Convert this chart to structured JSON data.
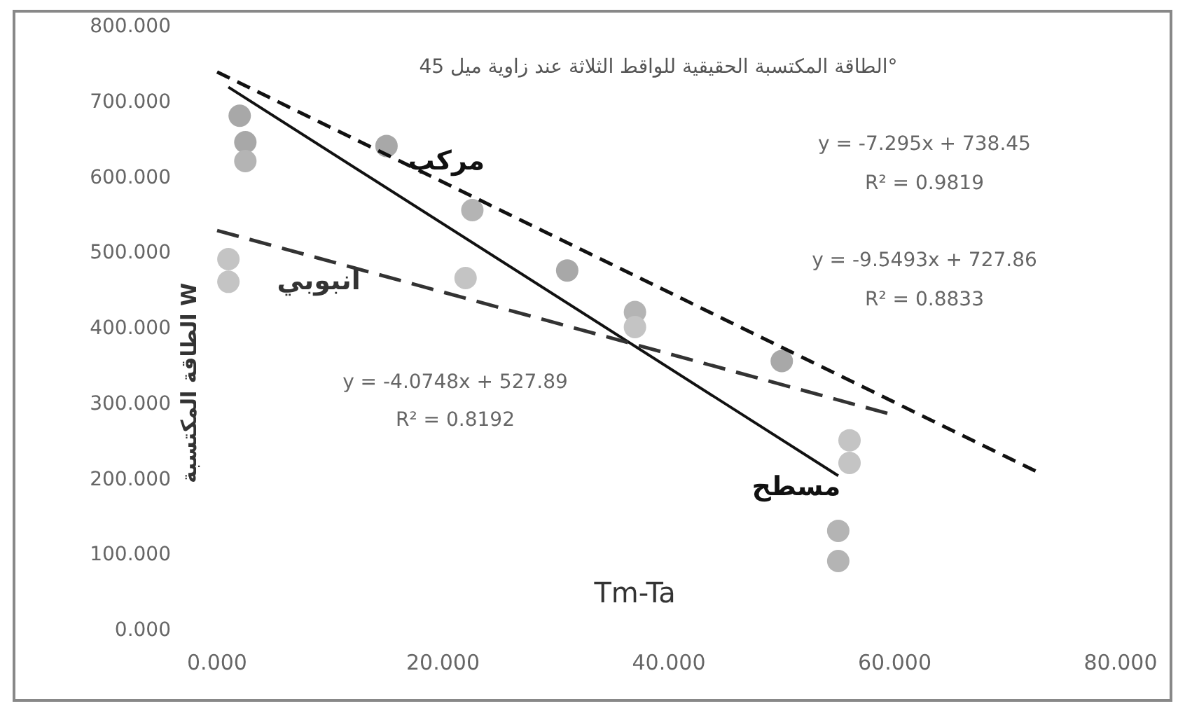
{
  "chart_data": {
    "type": "scatter",
    "title": "الطاقة المكتسبة الحقيقية للواقط الثلاثة عند زاوية ميل 45°",
    "xlabel": "Tm-Ta",
    "ylabel": "الطاقة المكتسبة W",
    "xlim": [
      0,
      80
    ],
    "ylim": [
      0,
      800
    ],
    "xticks": [
      {
        "value": 0,
        "label": "0.000"
      },
      {
        "value": 20,
        "label": "20.000"
      },
      {
        "value": 40,
        "label": "40.000"
      },
      {
        "value": 60,
        "label": "60.000"
      },
      {
        "value": 80,
        "label": "80.000"
      }
    ],
    "yticks": [
      {
        "value": 0,
        "label": "0.000"
      },
      {
        "value": 100,
        "label": "100.000"
      },
      {
        "value": 200,
        "label": "200.000"
      },
      {
        "value": 300,
        "label": "300.000"
      },
      {
        "value": 400,
        "label": "400.000"
      },
      {
        "value": 500,
        "label": "500.000"
      },
      {
        "value": 600,
        "label": "600.000"
      },
      {
        "value": 700,
        "label": "700.000"
      },
      {
        "value": 800,
        "label": "800.000"
      }
    ],
    "marker": "circle",
    "annotations": [
      "y = -7.295x + 738.45",
      "R² = 0.9819",
      "y = -9.5493x + 727.86",
      "R² = 0.8833",
      "y = -4.0748x + 527.89",
      "R² = 0.8192"
    ],
    "series": [
      {
        "color": "#a8a8a8",
        "x": [
          2,
          2.5,
          15,
          31,
          50
        ],
        "values": [
          680,
          645,
          640,
          475,
          355
        ]
      },
      {
        "color": "#b4b4b4",
        "x": [
          2.5,
          22.6,
          37,
          55,
          55
        ],
        "values": [
          620,
          555,
          420,
          130,
          90
        ]
      },
      {
        "color": "#c4c4c4",
        "x": [
          1,
          1,
          22,
          37,
          56,
          56
        ],
        "values": [
          490,
          460,
          465,
          400,
          250,
          220
        ]
      },
      {
        "type": "line",
        "name": "مركب",
        "color": "#111111",
        "line_style": "dashed",
        "marker": "none",
        "x": [
          0,
          72.5
        ],
        "values": [
          738,
          209
        ]
      },
      {
        "type": "line",
        "name": "مسطح",
        "color": "#111111",
        "line_style": "solid",
        "marker": "none",
        "x": [
          1,
          55
        ],
        "values": [
          718,
          203
        ]
      },
      {
        "type": "line",
        "name": "انبوبي",
        "color": "#333333",
        "line_style": "dashed",
        "marker": "none",
        "x": [
          0,
          60
        ],
        "values": [
          528,
          283
        ]
      }
    ]
  }
}
